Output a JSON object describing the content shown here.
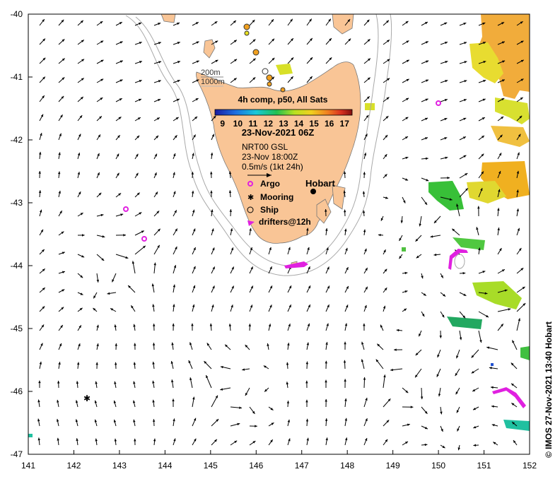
{
  "map": {
    "lat_ticks": [
      "-40",
      "-41",
      "-42",
      "-43",
      "-44",
      "-45",
      "-46",
      "-47"
    ],
    "lon_ticks": [
      "141",
      "142",
      "143",
      "144",
      "145",
      "146",
      "147",
      "148",
      "149",
      "150",
      "151",
      "152"
    ],
    "lon_range": [
      141,
      152
    ],
    "lat_range": [
      -40,
      -47
    ]
  },
  "isobaths": [
    "200m",
    "1000m"
  ],
  "colorbar": {
    "title": "4h comp, p50, All Sats",
    "ticks": [
      "9",
      "10",
      "11",
      "12",
      "13",
      "14",
      "15",
      "16",
      "17"
    ],
    "range": [
      8.5,
      17.5
    ],
    "date": "23-Nov-2021 06Z"
  },
  "currents": {
    "source": "NRT00 GSL",
    "time": "23-Nov 18:00Z",
    "scale": "0.5m/s (1kt 24h)"
  },
  "legend": {
    "argo": "Argo",
    "mooring": "Mooring",
    "ship": "Ship",
    "drifters": "drifters@12h"
  },
  "place": {
    "name": "Hobart",
    "lon": 147.32,
    "lat": -42.88
  },
  "credit": "© IMOS 27-Nov-2021 13:40 Hobart",
  "colors": {
    "land": "#f9c596",
    "argo": "#e020e0",
    "drifter": "#e020e0",
    "sst_warm": "#f0b020",
    "sst_cool": "#20b040"
  }
}
